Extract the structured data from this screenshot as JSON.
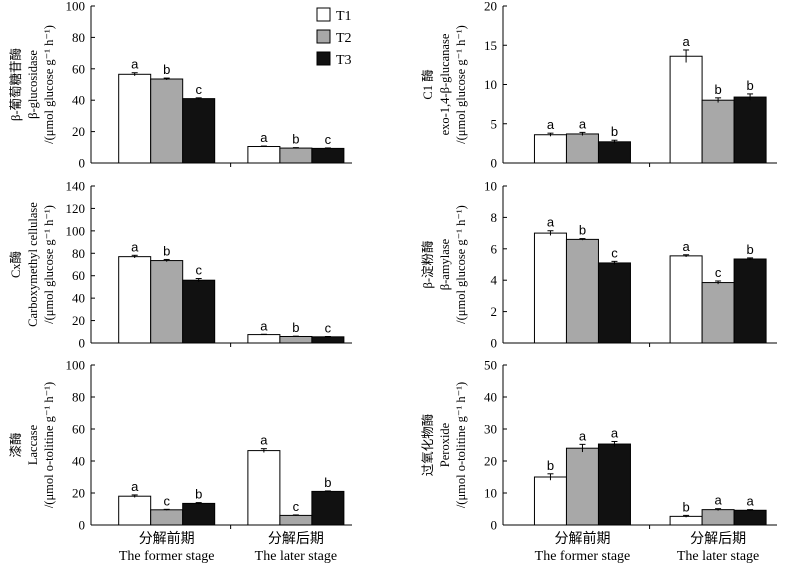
{
  "legend": [
    {
      "name": "T1",
      "color": "#ffffff"
    },
    {
      "name": "T2",
      "color": "#a8a8a8"
    },
    {
      "name": "T3",
      "color": "#111111"
    }
  ],
  "xcategories_cn": [
    "分解前期",
    "分解后期"
  ],
  "xcategories_en": [
    "The former stage",
    "The later stage"
  ],
  "chart_data": [
    {
      "type": "bar",
      "ylabel_lines": [
        "β-葡萄糖苷酶",
        "β-glucosidase",
        "/(μmol glucose g⁻¹ h⁻¹)"
      ],
      "ylim": [
        0,
        100
      ],
      "yticks": [
        0,
        20,
        40,
        60,
        80,
        100
      ],
      "categories": [
        "分解前期",
        "分解后期"
      ],
      "series": [
        {
          "name": "T1",
          "values": [
            56.5,
            10.5
          ],
          "errors": [
            1.0,
            0.3
          ],
          "letters": [
            "a",
            "a"
          ]
        },
        {
          "name": "T2",
          "values": [
            53.5,
            9.5
          ],
          "errors": [
            0.6,
            0.3
          ],
          "letters": [
            "b",
            "b"
          ]
        },
        {
          "name": "T3",
          "values": [
            41.0,
            9.3
          ],
          "errors": [
            0.5,
            0.3
          ],
          "letters": [
            "c",
            "c"
          ]
        }
      ]
    },
    {
      "type": "bar",
      "ylabel_lines": [
        "C1 酶",
        "exo-1,4-β-glucanase",
        "/(μmol glucose g⁻¹ h⁻¹)"
      ],
      "ylim": [
        0,
        20
      ],
      "yticks": [
        0,
        5,
        10,
        15,
        20
      ],
      "categories": [
        "分解前期",
        "分解后期"
      ],
      "series": [
        {
          "name": "T1",
          "values": [
            3.6,
            13.6
          ],
          "errors": [
            0.2,
            0.8
          ],
          "letters": [
            "a",
            "a"
          ]
        },
        {
          "name": "T2",
          "values": [
            3.7,
            8.0
          ],
          "errors": [
            0.2,
            0.3
          ],
          "letters": [
            "a",
            "b"
          ]
        },
        {
          "name": "T3",
          "values": [
            2.7,
            8.4
          ],
          "errors": [
            0.2,
            0.4
          ],
          "letters": [
            "b",
            "b"
          ]
        }
      ]
    },
    {
      "type": "bar",
      "ylabel_lines": [
        "Cx酶",
        "Carboxymethyl cellulase",
        "/(μmol glucose g⁻¹ h⁻¹)"
      ],
      "ylim": [
        0,
        140
      ],
      "yticks": [
        0,
        20,
        40,
        60,
        80,
        100,
        120,
        140
      ],
      "categories": [
        "分解前期",
        "分解后期"
      ],
      "series": [
        {
          "name": "T1",
          "values": [
            77.0,
            7.5
          ],
          "errors": [
            1.2,
            0.3
          ],
          "letters": [
            "a",
            "a"
          ]
        },
        {
          "name": "T2",
          "values": [
            73.5,
            5.8
          ],
          "errors": [
            1.0,
            0.3
          ],
          "letters": [
            "b",
            "b"
          ]
        },
        {
          "name": "T3",
          "values": [
            56.0,
            5.5
          ],
          "errors": [
            1.5,
            0.3
          ],
          "letters": [
            "c",
            "c"
          ]
        }
      ]
    },
    {
      "type": "bar",
      "ylabel_lines": [
        "β-淀粉酶",
        "β-amylase",
        "/(μmol glucose g⁻¹ h⁻¹)"
      ],
      "ylim": [
        0,
        10
      ],
      "yticks": [
        0,
        2,
        4,
        6,
        8,
        10
      ],
      "categories": [
        "分解前期",
        "分解后期"
      ],
      "series": [
        {
          "name": "T1",
          "values": [
            7.0,
            5.55
          ],
          "errors": [
            0.15,
            0.07
          ],
          "letters": [
            "a",
            "a"
          ]
        },
        {
          "name": "T2",
          "values": [
            6.6,
            3.85
          ],
          "errors": [
            0.05,
            0.1
          ],
          "letters": [
            "b",
            "c"
          ]
        },
        {
          "name": "T3",
          "values": [
            5.1,
            5.35
          ],
          "errors": [
            0.1,
            0.07
          ],
          "letters": [
            "c",
            "b"
          ]
        }
      ]
    },
    {
      "type": "bar",
      "ylabel_lines": [
        "漆酶",
        "Laccase",
        "/(μmol o-tolitine g⁻¹ h⁻¹)"
      ],
      "ylim": [
        0,
        100
      ],
      "yticks": [
        0,
        20,
        40,
        60,
        80,
        100
      ],
      "categories": [
        "分解前期",
        "分解后期"
      ],
      "series": [
        {
          "name": "T1",
          "values": [
            18.0,
            46.5
          ],
          "errors": [
            0.8,
            1.2
          ],
          "letters": [
            "a",
            "a"
          ]
        },
        {
          "name": "T2",
          "values": [
            9.5,
            6.0
          ],
          "errors": [
            0.3,
            0.3
          ],
          "letters": [
            "c",
            "c"
          ]
        },
        {
          "name": "T3",
          "values": [
            13.5,
            21.0
          ],
          "errors": [
            0.5,
            0.3
          ],
          "letters": [
            "b",
            "b"
          ]
        }
      ]
    },
    {
      "type": "bar",
      "ylabel_lines": [
        "过氧化物酶",
        "Peroxide",
        "/(μmol o-tolitine g⁻¹ h⁻¹)"
      ],
      "ylim": [
        0,
        50
      ],
      "yticks": [
        0,
        10,
        20,
        30,
        40,
        50
      ],
      "categories": [
        "分解前期",
        "分解后期"
      ],
      "series": [
        {
          "name": "T1",
          "values": [
            15.0,
            2.7
          ],
          "errors": [
            1.0,
            0.3
          ],
          "letters": [
            "b",
            "b"
          ]
        },
        {
          "name": "T2",
          "values": [
            24.0,
            4.8
          ],
          "errors": [
            1.2,
            0.3
          ],
          "letters": [
            "a",
            "a"
          ]
        },
        {
          "name": "T3",
          "values": [
            25.3,
            4.6
          ],
          "errors": [
            0.8,
            0.2
          ],
          "letters": [
            "a",
            "a"
          ]
        }
      ]
    }
  ]
}
